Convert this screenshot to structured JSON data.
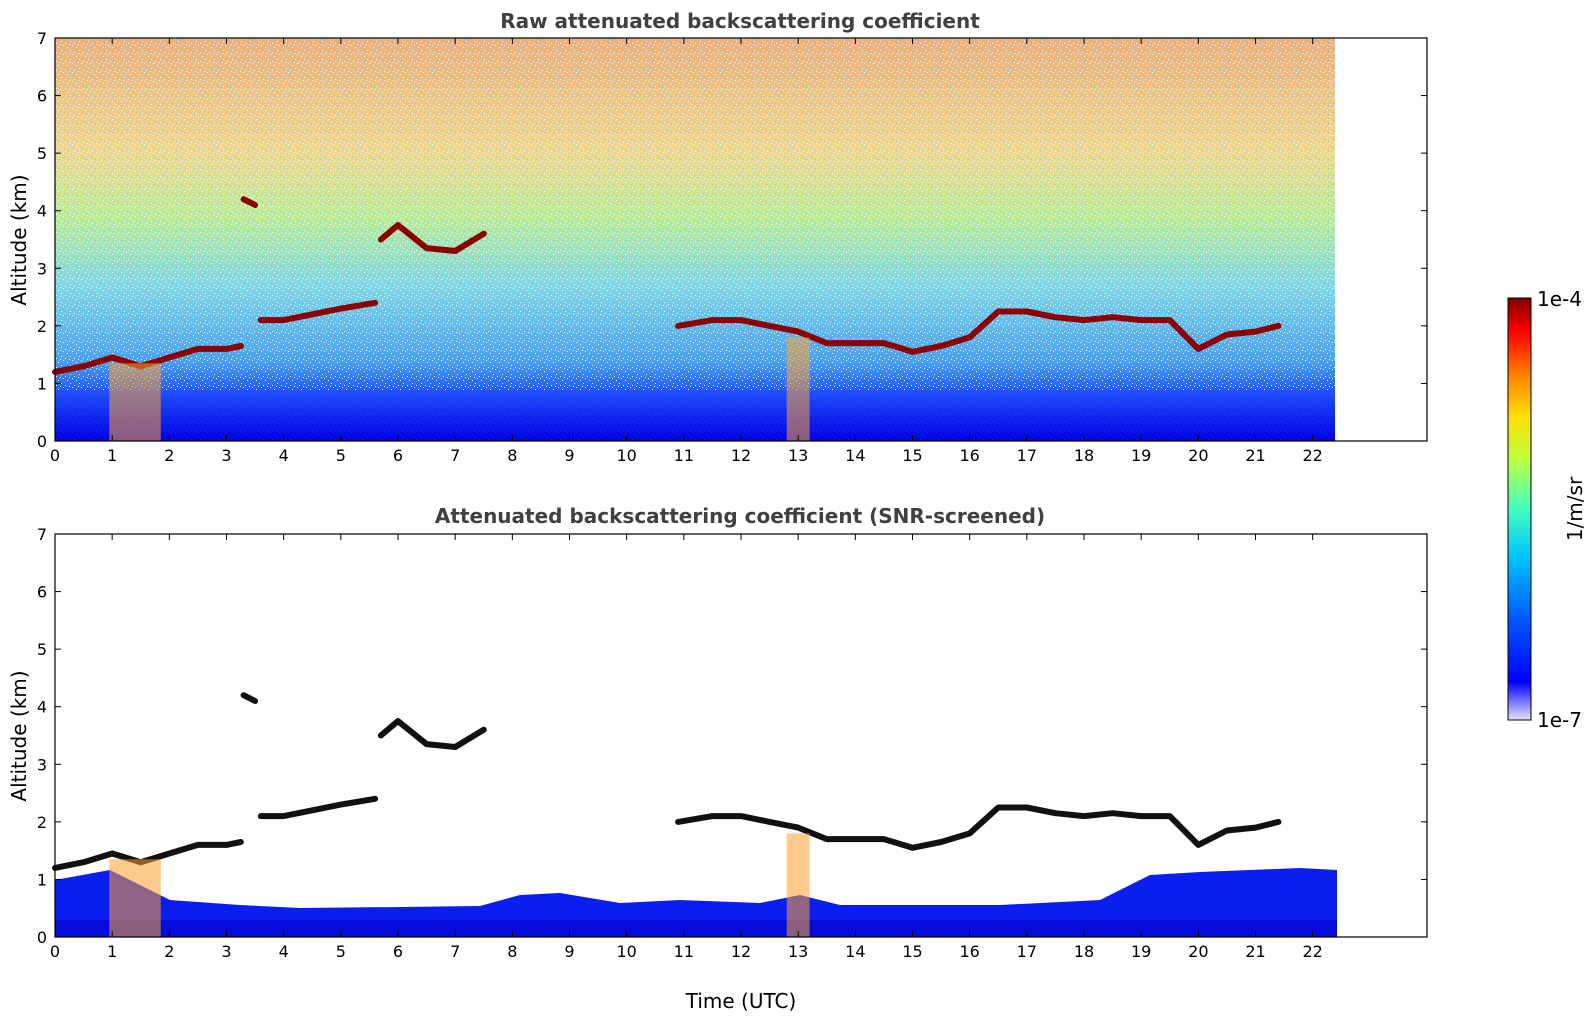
{
  "chart_data": [
    {
      "type": "heatmap",
      "title": "Raw attenuated backscattering coefficient",
      "xlabel": "",
      "ylabel": "Altitude (km)",
      "xlim": [
        0,
        24
      ],
      "ylim": [
        0,
        7
      ],
      "x_ticks": [
        "0",
        "1",
        "2",
        "3",
        "4",
        "5",
        "6",
        "7",
        "8",
        "9",
        "10",
        "11",
        "12",
        "13",
        "14",
        "15",
        "16",
        "17",
        "18",
        "19",
        "20",
        "21",
        "22"
      ],
      "y_ticks": [
        "0",
        "1",
        "2",
        "3",
        "4",
        "5",
        "6",
        "7"
      ],
      "data_end_time": 22.4,
      "cloud_layers": [
        {
          "x": [
            0,
            0.5,
            1.0,
            1.5,
            2.0,
            2.5,
            3.0,
            3.25
          ],
          "y": [
            1.2,
            1.3,
            1.45,
            1.3,
            1.45,
            1.6,
            1.6,
            1.65
          ]
        },
        {
          "x": [
            3.3,
            3.5
          ],
          "y": [
            4.2,
            4.1
          ]
        },
        {
          "x": [
            3.6,
            4.0,
            4.5,
            5.0,
            5.6
          ],
          "y": [
            2.1,
            2.1,
            2.2,
            2.3,
            2.4
          ]
        },
        {
          "x": [
            5.7,
            6.0,
            6.5,
            7.0,
            7.5
          ],
          "y": [
            3.5,
            3.75,
            3.35,
            3.3,
            3.6
          ]
        },
        {
          "x": [
            10.9,
            11.5,
            12.0,
            12.5,
            13.0,
            13.5,
            14.0,
            14.5,
            15.0,
            15.5,
            16.0,
            16.5,
            17.0,
            17.5,
            18.0,
            18.5,
            19.0,
            19.5,
            20.0,
            20.5,
            21.0,
            21.4
          ],
          "y": [
            2.0,
            2.1,
            2.1,
            2.0,
            1.9,
            1.7,
            1.7,
            1.7,
            1.55,
            1.65,
            1.8,
            2.25,
            2.25,
            2.15,
            2.1,
            2.15,
            2.1,
            2.1,
            1.6,
            1.85,
            1.9,
            2.0
          ]
        }
      ]
    },
    {
      "type": "heatmap",
      "title": "Attenuated backscattering coefficient (SNR-screened)",
      "xlabel": "Time (UTC)",
      "ylabel": "Altitude (km)",
      "xlim": [
        0,
        24
      ],
      "ylim": [
        0,
        7
      ],
      "x_ticks": [
        "0",
        "1",
        "2",
        "3",
        "4",
        "5",
        "6",
        "7",
        "8",
        "9",
        "10",
        "11",
        "12",
        "13",
        "14",
        "15",
        "16",
        "17",
        "18",
        "19",
        "20",
        "21",
        "22"
      ],
      "y_ticks": [
        "0",
        "1",
        "2",
        "3",
        "4",
        "5",
        "6",
        "7"
      ],
      "data_end_time": 22.4
    }
  ],
  "colorbar": {
    "label": "1/m/sr",
    "max_label": "1e-4",
    "min_label": "1e-7",
    "colormap": "jet",
    "colors": [
      "#e8e8f8",
      "#0000ff",
      "#00aaff",
      "#00ffd0",
      "#ffff00",
      "#ff8000",
      "#ff0000",
      "#800000"
    ]
  }
}
